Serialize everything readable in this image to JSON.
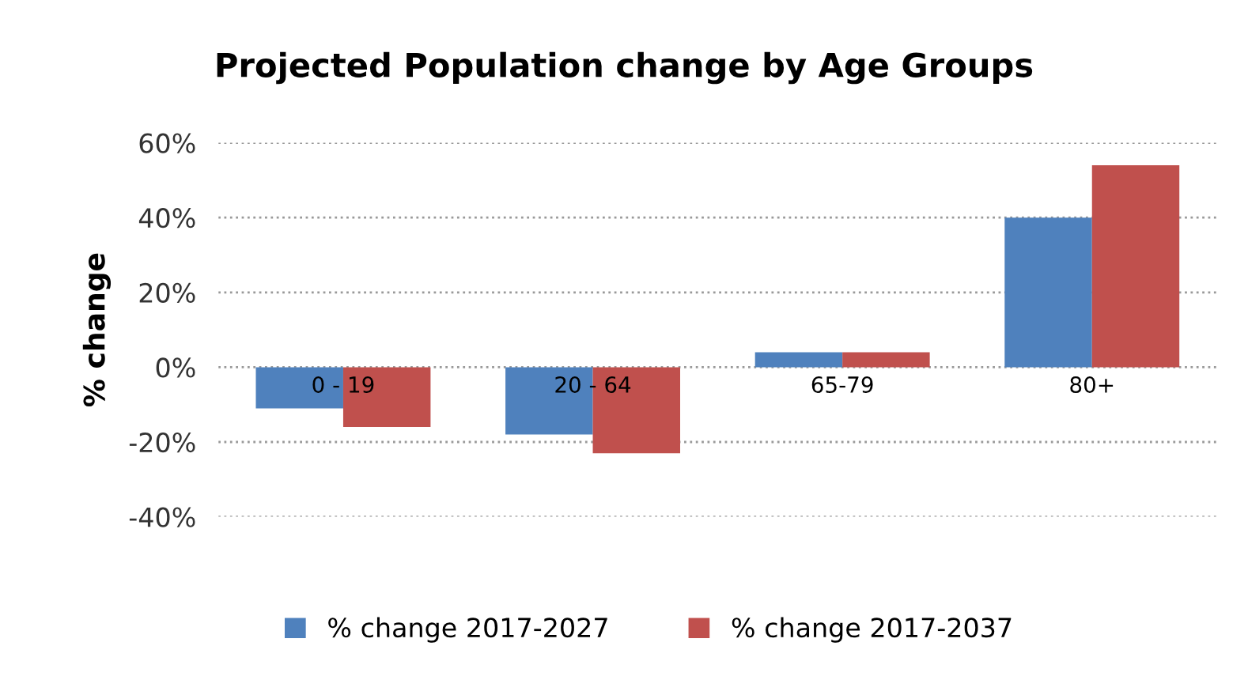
{
  "chart_data": {
    "type": "bar",
    "title": "Projected Population change by Age Groups",
    "ylabel": "% change",
    "categories": [
      "0 - 19",
      "20 - 64",
      "65-79",
      "80+"
    ],
    "series": [
      {
        "name": "% change 2017-2027",
        "color": "#4f81bd",
        "values": [
          -11,
          -18,
          4,
          40
        ]
      },
      {
        "name": "% change 2017-2037",
        "color": "#c0504d",
        "values": [
          -16,
          -23,
          4,
          54
        ]
      }
    ],
    "ylim": [
      -40,
      60
    ],
    "yticks": [
      {
        "value": -40,
        "label": "-40%"
      },
      {
        "value": -20,
        "label": "-20%"
      },
      {
        "value": 0,
        "label": "0%"
      },
      {
        "value": 20,
        "label": "20%"
      },
      {
        "value": 40,
        "label": "40%"
      },
      {
        "value": 60,
        "label": "60%"
      }
    ],
    "grid": "y",
    "legend": "bottom"
  }
}
